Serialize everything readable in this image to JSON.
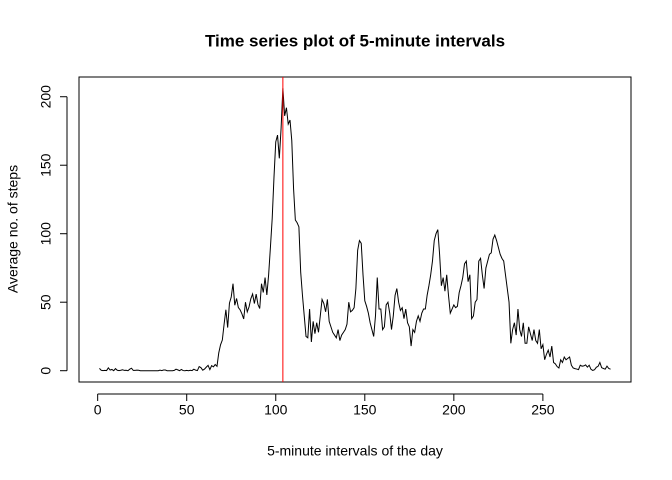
{
  "chart_data": {
    "type": "line",
    "title": "Time series plot of 5-minute intervals",
    "xlabel": "5-minute intervals of the day",
    "ylabel": "Average no. of steps",
    "x": [
      1,
      2,
      3,
      4,
      5,
      6,
      7,
      8,
      9,
      10,
      11,
      12,
      13,
      14,
      15,
      16,
      17,
      18,
      19,
      20,
      21,
      22,
      23,
      24,
      25,
      26,
      27,
      28,
      29,
      30,
      31,
      32,
      33,
      34,
      35,
      36,
      37,
      38,
      39,
      40,
      41,
      42,
      43,
      44,
      45,
      46,
      47,
      48,
      49,
      50,
      51,
      52,
      53,
      54,
      55,
      56,
      57,
      58,
      59,
      60,
      61,
      62,
      63,
      64,
      65,
      66,
      67,
      68,
      69,
      70,
      71,
      72,
      73,
      74,
      75,
      76,
      77,
      78,
      79,
      80,
      81,
      82,
      83,
      84,
      85,
      86,
      87,
      88,
      89,
      90,
      91,
      92,
      93,
      94,
      95,
      96,
      97,
      98,
      99,
      100,
      101,
      102,
      103,
      104,
      105,
      106,
      107,
      108,
      109,
      110,
      111,
      112,
      113,
      114,
      115,
      116,
      117,
      118,
      119,
      120,
      121,
      122,
      123,
      124,
      125,
      126,
      127,
      128,
      129,
      130,
      131,
      132,
      133,
      134,
      135,
      136,
      137,
      138,
      139,
      140,
      141,
      142,
      143,
      144,
      145,
      146,
      147,
      148,
      149,
      150,
      151,
      152,
      153,
      154,
      155,
      156,
      157,
      158,
      159,
      160,
      161,
      162,
      163,
      164,
      165,
      166,
      167,
      168,
      169,
      170,
      171,
      172,
      173,
      174,
      175,
      176,
      177,
      178,
      179,
      180,
      181,
      182,
      183,
      184,
      185,
      186,
      187,
      188,
      189,
      190,
      191,
      192,
      193,
      194,
      195,
      196,
      197,
      198,
      199,
      200,
      201,
      202,
      203,
      204,
      205,
      206,
      207,
      208,
      209,
      210,
      211,
      212,
      213,
      214,
      215,
      216,
      217,
      218,
      219,
      220,
      221,
      222,
      223,
      224,
      225,
      226,
      227,
      228,
      229,
      230,
      231,
      232,
      233,
      234,
      235,
      236,
      237,
      238,
      239,
      240,
      241,
      242,
      243,
      244,
      245,
      246,
      247,
      248,
      249,
      250,
      251,
      252,
      253,
      254,
      255,
      256,
      257,
      258,
      259,
      260,
      261,
      262,
      263,
      264,
      265,
      266,
      267,
      268,
      269,
      270,
      271,
      272,
      273,
      274,
      275,
      276,
      277,
      278,
      279,
      280,
      281,
      282,
      283,
      284,
      285,
      286,
      287,
      288
    ],
    "series": [
      {
        "color": "#000000",
        "values": [
          1.7,
          0.3,
          0.1,
          0.2,
          0.1,
          2.1,
          0.5,
          0.9,
          0,
          1.5,
          0.3,
          0.1,
          0.3,
          0.7,
          0.2,
          0.3,
          0,
          1.1,
          1.8,
          0.2,
          0.2,
          0.4,
          0.3,
          0,
          0,
          0,
          0,
          0,
          0,
          0,
          0,
          0,
          0,
          0,
          0.4,
          0.1,
          0.5,
          0.5,
          0,
          0,
          0,
          0,
          0.2,
          1.1,
          0.6,
          0,
          0.9,
          0.1,
          0,
          0.2,
          0,
          0.3,
          0.1,
          1.1,
          0.4,
          0.1,
          3.0,
          2.2,
          0.4,
          1.2,
          2.6,
          3.9,
          0.8,
          3.7,
          2.8,
          4.5,
          3.2,
          13.0,
          18.9,
          22.4,
          34.0,
          44.5,
          31.5,
          49.3,
          53.8,
          63.5,
          47.8,
          52.7,
          46.1,
          44.4,
          41.5,
          37.8,
          50.0,
          43.0,
          46.6,
          52.5,
          56.0,
          49.0,
          55.9,
          48.4,
          45.4,
          63.5,
          57.1,
          68.0,
          55.3,
          70.0,
          90,
          111,
          141,
          167,
          172,
          155,
          177,
          206.2,
          186,
          192,
          180,
          183,
          168,
          133,
          110,
          108,
          105,
          72,
          55,
          40,
          25,
          24,
          45,
          21,
          36,
          27,
          35,
          28,
          40,
          52,
          49,
          43,
          52,
          36,
          32,
          28,
          26,
          24,
          30,
          22,
          26,
          28,
          30,
          34,
          50,
          43,
          44,
          46,
          60,
          88,
          95,
          93,
          70,
          51,
          47,
          42,
          35,
          30,
          25,
          40,
          68,
          45,
          45,
          30,
          32,
          48,
          50,
          42,
          30,
          40,
          55,
          60,
          50,
          44,
          46,
          38,
          45,
          35,
          32,
          18,
          30,
          28,
          36,
          40,
          36,
          42,
          45,
          45,
          55,
          62,
          70,
          80,
          95,
          100,
          103,
          85,
          62,
          68,
          58,
          70,
          55,
          42,
          45,
          48,
          46,
          47,
          57,
          62,
          68,
          78,
          80,
          65,
          70,
          38,
          40,
          50,
          52,
          80,
          82,
          70,
          60,
          75,
          80,
          85,
          86,
          96,
          99,
          95,
          90,
          85,
          82,
          80,
          70,
          60,
          50,
          20,
          30,
          35,
          26,
          45,
          30,
          25,
          35,
          20,
          20,
          32,
          27,
          22,
          30,
          22,
          20,
          30,
          16,
          19,
          8,
          12,
          15,
          10,
          18,
          6,
          5,
          3,
          2,
          8,
          6,
          10,
          8,
          9,
          10,
          4,
          2,
          1.5,
          1.2,
          0.8,
          4,
          3.3,
          3.5,
          4.2,
          2.6,
          4.0,
          1.0,
          0.2,
          0.7,
          2.5,
          3.2,
          6,
          2.2,
          1.6,
          1.1,
          3.3,
          1.6,
          1.1
        ]
      }
    ],
    "vline": {
      "value": 104,
      "color": "#ff0000"
    },
    "xlim": [
      -10.48,
      299.48
    ],
    "xticks": [
      0,
      50,
      100,
      150,
      200,
      250
    ],
    "ylim": [
      -8.25,
      214.4
    ],
    "yticks": [
      0,
      50,
      100,
      150,
      200
    ]
  }
}
